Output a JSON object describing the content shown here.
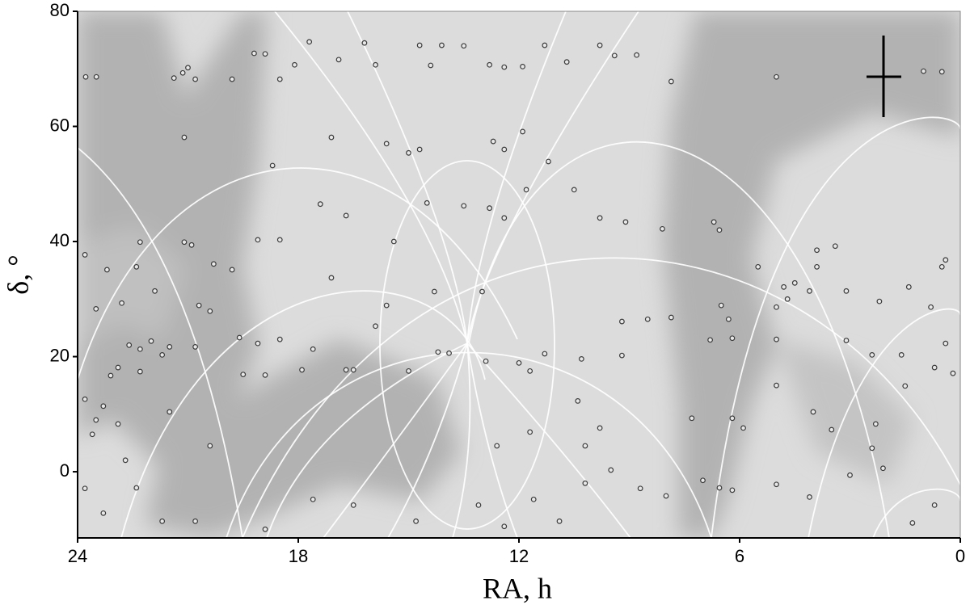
{
  "chart_data": {
    "type": "scatter",
    "xlabel": "RA, h",
    "ylabel": "δ, °",
    "xlim": [
      24,
      0
    ],
    "ylim": [
      -11.5,
      80
    ],
    "xticks": [
      24,
      18,
      12,
      6,
      0
    ],
    "yticks": [
      0,
      20,
      40,
      60,
      80
    ],
    "color": "#3a3a3a",
    "x": [
      23.78,
      23.49,
      21.38,
      21.14,
      21.0,
      20.8,
      21.1,
      19.8,
      19.2,
      18.9,
      18.5,
      18.1,
      17.7,
      16.9,
      16.2,
      15.9,
      14.7,
      14.4,
      14.1,
      13.5,
      12.8,
      12.4,
      11.9,
      11.3,
      10.7,
      9.8,
      9.4,
      8.8,
      7.86,
      5.0,
      1.0,
      0.5,
      15.6,
      15.0,
      14.7,
      12.7,
      12.4,
      11.9,
      11.2,
      18.7,
      17.1,
      10.5,
      11.8,
      9.8,
      9.1,
      8.1,
      6.7,
      6.55,
      14.5,
      13.5,
      12.8,
      12.4,
      15.4,
      17.4,
      16.7,
      19.1,
      18.5,
      21.1,
      20.9,
      20.3,
      19.8,
      22.3,
      23.8,
      23.2,
      22.4,
      3.4,
      3.9,
      3.9,
      0.5,
      0.4,
      5.5,
      4.8,
      4.5,
      4.1,
      3.1,
      2.2,
      1.4,
      0.8,
      5.0,
      4.7,
      6.5,
      6.3,
      17.1,
      14.3,
      13.0,
      15.6,
      15.9,
      20.7,
      20.4,
      21.9,
      22.8,
      23.5,
      7.86,
      8.5,
      9.2,
      6.2,
      6.8,
      5.0,
      3.1,
      2.4,
      1.6,
      0.4,
      22.0,
      22.3,
      22.6,
      21.7,
      21.5,
      20.8,
      19.6,
      19.1,
      18.5,
      17.6,
      16.7,
      16.5,
      17.9,
      18.9,
      19.5,
      22.9,
      23.1,
      22.3,
      14.2,
      13.9,
      12.9,
      12.0,
      11.7,
      11.3,
      10.3,
      15.0,
      9.2,
      23.8,
      23.3,
      23.5,
      22.9,
      22.7,
      23.6,
      20.4,
      21.5,
      10.4,
      9.8,
      10.2,
      11.7,
      12.6,
      7.3,
      6.2,
      5.9,
      5.0,
      4.0,
      3.5,
      2.3,
      1.5,
      0.7,
      0.2,
      2.4,
      2.1,
      23.8,
      23.3,
      22.4,
      21.7,
      20.8,
      18.9,
      17.6,
      16.5,
      14.8,
      13.1,
      12.4,
      11.6,
      10.9,
      10.2,
      9.5,
      8.7,
      8.0,
      7.0,
      6.55,
      6.2,
      5.0,
      4.1,
      3.0,
      1.3,
      0.7
    ],
    "values": [
      68.6,
      68.6,
      68.4,
      69.3,
      70.2,
      68.2,
      58.1,
      68.2,
      72.7,
      72.6,
      68.2,
      70.7,
      74.7,
      71.6,
      74.5,
      70.7,
      74.1,
      70.6,
      74.1,
      74.0,
      70.7,
      70.3,
      70.4,
      74.1,
      71.2,
      74.1,
      72.3,
      72.4,
      67.8,
      68.6,
      69.6,
      69.5,
      57.0,
      55.4,
      56.0,
      57.4,
      56.0,
      59.1,
      53.9,
      53.2,
      58.1,
      49.0,
      49.0,
      44.1,
      43.4,
      42.2,
      43.4,
      42.0,
      46.7,
      46.2,
      45.8,
      44.1,
      40.0,
      46.5,
      44.5,
      40.3,
      40.3,
      39.9,
      39.4,
      36.1,
      35.1,
      39.9,
      37.7,
      35.1,
      35.6,
      39.2,
      38.5,
      35.6,
      35.6,
      36.8,
      35.6,
      32.1,
      32.8,
      31.4,
      31.4,
      29.6,
      32.1,
      28.6,
      28.6,
      30.0,
      28.9,
      26.5,
      33.7,
      31.3,
      31.3,
      28.9,
      25.3,
      28.9,
      27.9,
      31.4,
      29.3,
      28.3,
      26.8,
      26.5,
      26.1,
      23.2,
      22.9,
      23.0,
      22.8,
      20.3,
      20.3,
      22.3,
      22.7,
      21.3,
      22.0,
      20.3,
      21.7,
      21.7,
      23.3,
      22.3,
      23.0,
      21.3,
      17.7,
      17.7,
      17.7,
      16.8,
      16.9,
      18.1,
      16.7,
      17.4,
      20.8,
      20.6,
      19.2,
      18.9,
      17.5,
      20.5,
      19.6,
      17.5,
      20.2,
      12.6,
      11.4,
      9.0,
      8.3,
      2.0,
      6.5,
      4.5,
      10.4,
      12.3,
      7.6,
      4.5,
      6.9,
      4.5,
      9.3,
      9.3,
      7.6,
      15.0,
      10.4,
      7.3,
      8.3,
      14.9,
      18.1,
      17.1,
      4.1,
      0.6,
      -2.9,
      -7.2,
      -2.8,
      -8.6,
      -8.6,
      -10.0,
      -4.8,
      -5.8,
      -8.6,
      -5.8,
      -9.5,
      -4.8,
      -8.6,
      -2.0,
      0.3,
      -2.9,
      -4.2,
      -1.5,
      -2.8,
      -3.2,
      -2.2,
      -4.4,
      -0.6,
      -8.9,
      -5.8
    ]
  }
}
